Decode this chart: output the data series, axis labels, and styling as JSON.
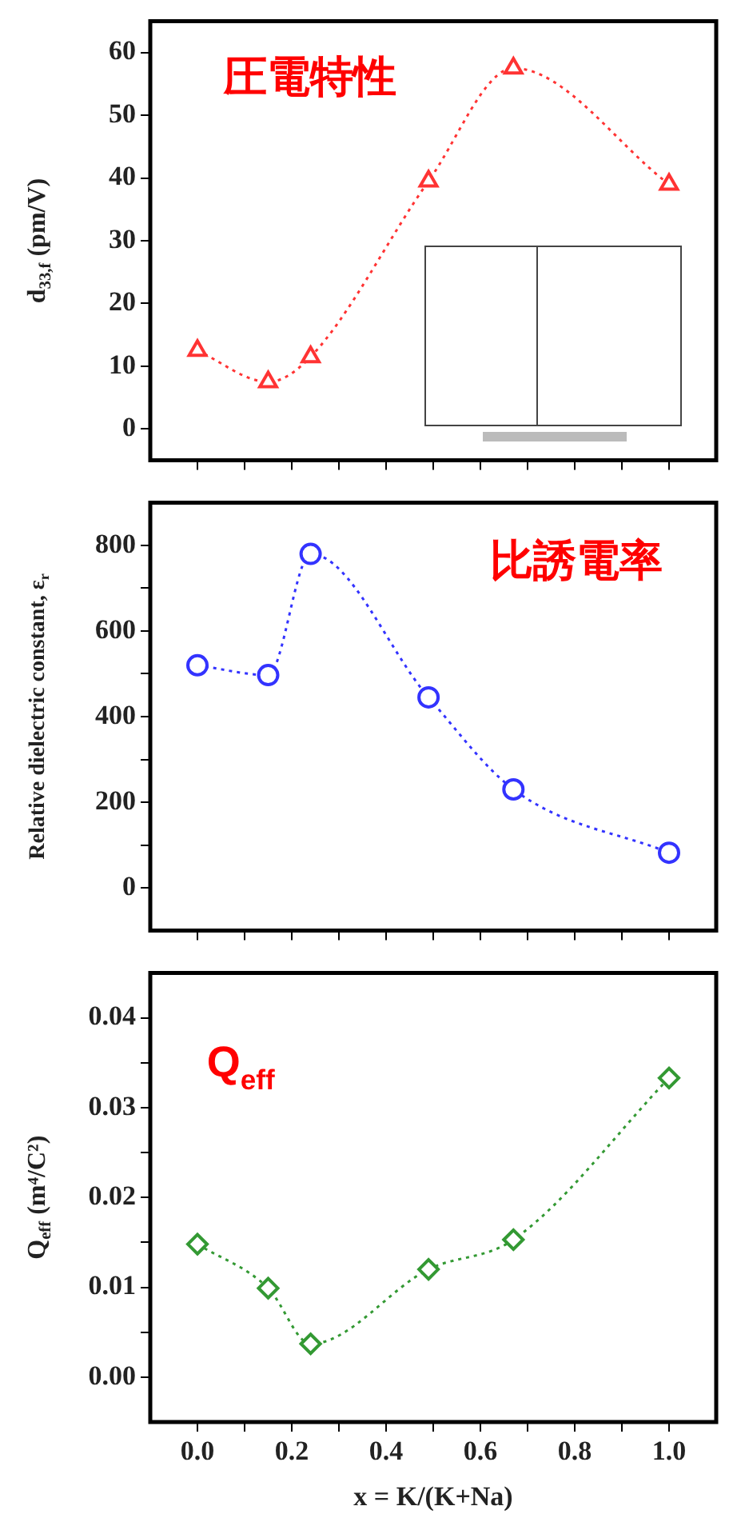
{
  "chart_data": [
    {
      "type": "line",
      "x": [
        0,
        0.15,
        0.24,
        0.49,
        0.67,
        1.0
      ],
      "series": [
        {
          "color": "#ff3333",
          "values": [
            12.5,
            7.5,
            11.5,
            39.5,
            57.5,
            39
          ]
        }
      ],
      "ylabel": "d$_{33,f}$ (pm/V)",
      "annotations": [
        "圧電特性"
      ],
      "xlim": [
        -0.1,
        1.1
      ],
      "xticks": [
        0,
        {
          "value": 0.1,
          "label": null
        },
        0.2,
        {
          "value": 0.3,
          "label": null
        },
        0.4,
        {
          "value": 0.5,
          "label": null
        },
        0.6,
        {
          "value": 0.7,
          "label": null
        },
        0.8,
        {
          "value": 0.9,
          "label": null
        },
        1.0
      ],
      "ylim": [
        -5,
        65
      ],
      "yticks": [
        0,
        10,
        20,
        30,
        40,
        50,
        60
      ],
      "tick_labels": "y",
      "marker": "triangle",
      "line_style": "dotted",
      "grid": false,
      "legend": false
    },
    {
      "type": "line",
      "x": [
        0,
        0.15,
        0.24,
        0.49,
        0.67,
        1.0
      ],
      "series": [
        {
          "color": "#3333ff",
          "values": [
            520,
            497,
            780,
            445,
            230,
            82
          ]
        }
      ],
      "ylabel": "Relative dielectric constant, ε$_{r}$",
      "annotations": [
        "比誘電率"
      ],
      "xlim": [
        -0.1,
        1.1
      ],
      "xticks": [
        0,
        {
          "value": 0.1,
          "label": null
        },
        0.2,
        {
          "value": 0.3,
          "label": null
        },
        0.4,
        {
          "value": 0.5,
          "label": null
        },
        0.6,
        {
          "value": 0.7,
          "label": null
        },
        0.8,
        {
          "value": 0.9,
          "label": null
        },
        1.0
      ],
      "ylim": [
        -100,
        900
      ],
      "yticks": [
        0,
        {
          "value": 100,
          "label": null
        },
        200,
        {
          "value": 300,
          "label": null
        },
        400,
        {
          "value": 500,
          "label": null
        },
        600,
        {
          "value": 700,
          "label": null
        },
        800
      ],
      "tick_labels": "y",
      "marker": "circle",
      "line_style": "dotted",
      "grid": false,
      "legend": false
    },
    {
      "type": "line",
      "x": [
        0,
        0.15,
        0.24,
        0.49,
        0.67,
        1.0
      ],
      "series": [
        {
          "color": "#339933",
          "values": [
            0.0148,
            0.0099,
            0.0037,
            0.012,
            0.0153,
            0.0333
          ]
        }
      ],
      "ylabel": "Q$_{eff}$ (m⁴/C²)",
      "xlabel": "x = K/(K+Na)",
      "annotations": [
        "Q$_{eff}$"
      ],
      "xlim": [
        -0.1,
        1.1
      ],
      "xticks": [
        {
          "value": 0,
          "label": "0.0"
        },
        {
          "value": 0.1,
          "label": null
        },
        0.2,
        {
          "value": 0.3,
          "label": null
        },
        0.4,
        {
          "value": 0.5,
          "label": null
        },
        0.6,
        {
          "value": 0.7,
          "label": null
        },
        0.8,
        {
          "value": 0.9,
          "label": null
        },
        {
          "value": 1.0,
          "label": "1.0"
        }
      ],
      "ylim": [
        -0.005,
        0.045
      ],
      "yticks": [
        {
          "value": 0,
          "label": "0.00"
        },
        {
          "value": 0.005,
          "label": null
        },
        0.01,
        {
          "value": 0.015,
          "label": null
        },
        0.02,
        {
          "value": 0.025,
          "label": null
        },
        0.03,
        {
          "value": 0.035,
          "label": null
        },
        0.04
      ],
      "marker": "diamond",
      "line_style": "dotted",
      "grid": false,
      "legend": false
    }
  ]
}
